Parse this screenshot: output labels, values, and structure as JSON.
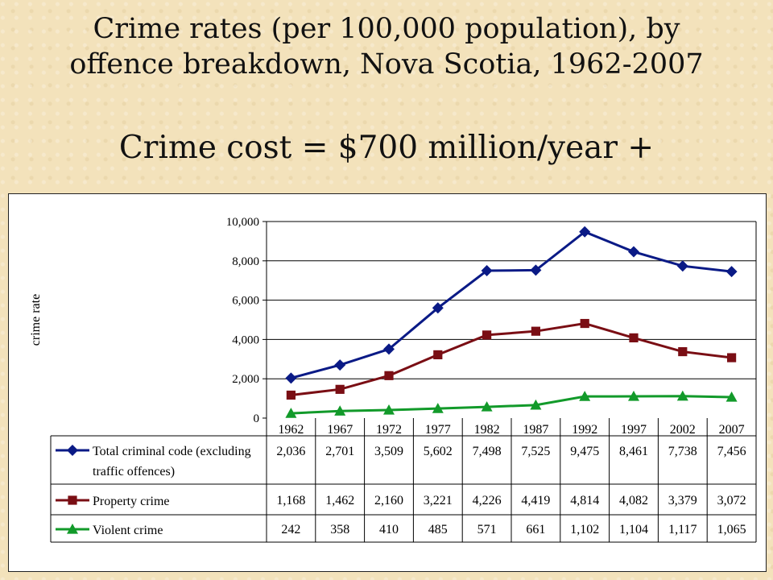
{
  "slide": {
    "title_line1": "Crime rates (per 100,000 population), by",
    "title_line2": "offence breakdown, Nova Scotia, 1962-2007",
    "subtitle": "Crime cost = $700 million/year +"
  },
  "chart_data": {
    "type": "line",
    "ylabel": "crime rate",
    "ylim": [
      0,
      10000
    ],
    "yticks": [
      0,
      2000,
      4000,
      6000,
      8000,
      10000
    ],
    "ytick_labels": [
      "0",
      "2,000",
      "4,000",
      "6,000",
      "8,000",
      "10,000"
    ],
    "grid": "horizontal",
    "categories": [
      "1962",
      "1967",
      "1972",
      "1977",
      "1982",
      "1987",
      "1992",
      "1997",
      "2002",
      "2007"
    ],
    "series": [
      {
        "name_lines": [
          "Total criminal code (excluding",
          "traffic offences)"
        ],
        "color": "#0a1a86",
        "marker": "diamond",
        "values": [
          2036,
          2701,
          3509,
          5602,
          7498,
          7525,
          9475,
          8461,
          7738,
          7456
        ],
        "labels": [
          "2,036",
          "2,701",
          "3,509",
          "5,602",
          "7,498",
          "7,525",
          "9,475",
          "8,461",
          "7,738",
          "7,456"
        ]
      },
      {
        "name_lines": [
          "Property crime"
        ],
        "color": "#7a0e14",
        "marker": "square",
        "values": [
          1168,
          1462,
          2160,
          3221,
          4226,
          4419,
          4814,
          4082,
          3379,
          3072
        ],
        "labels": [
          "1,168",
          "1,462",
          "2,160",
          "3,221",
          "4,226",
          "4,419",
          "4,814",
          "4,082",
          "3,379",
          "3,072"
        ]
      },
      {
        "name_lines": [
          "Violent crime"
        ],
        "color": "#129a2a",
        "marker": "triangle",
        "values": [
          242,
          358,
          410,
          485,
          571,
          661,
          1102,
          1104,
          1117,
          1065
        ],
        "labels": [
          "242",
          "358",
          "410",
          "485",
          "571",
          "661",
          "1,102",
          "1,104",
          "1,117",
          "1,065"
        ]
      }
    ]
  }
}
